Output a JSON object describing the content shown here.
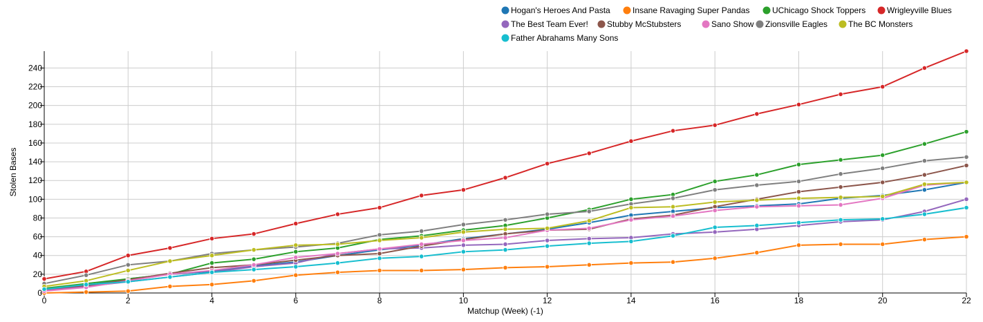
{
  "chart_data": {
    "type": "line",
    "xlabel": "Matchup (Week) (-1)",
    "ylabel": "Stolen Bases",
    "xlim": [
      0,
      22
    ],
    "ylim": [
      0,
      258
    ],
    "xticks": [
      0,
      2,
      4,
      6,
      8,
      10,
      12,
      14,
      16,
      18,
      20,
      22
    ],
    "yticks": [
      0,
      20,
      40,
      60,
      80,
      100,
      120,
      140,
      160,
      180,
      200,
      220,
      240
    ],
    "grid": true,
    "legend_position": "top-right",
    "x": [
      0,
      1,
      2,
      3,
      4,
      5,
      6,
      7,
      8,
      9,
      10,
      11,
      12,
      13,
      14,
      15,
      16,
      17,
      18,
      19,
      20,
      21,
      22
    ],
    "series": [
      {
        "name": "Hogan's Heroes And Pasta",
        "color": "#1f77b4",
        "values": [
          3,
          8,
          15,
          20,
          23,
          29,
          33,
          40,
          46,
          51,
          58,
          63,
          68,
          75,
          83,
          87,
          91,
          93,
          95,
          101,
          104,
          110,
          118
        ]
      },
      {
        "name": "Insane Ravaging Super Pandas",
        "color": "#ff7f0e",
        "values": [
          0,
          1,
          2,
          7,
          9,
          13,
          19,
          22,
          24,
          24,
          25,
          27,
          28,
          30,
          32,
          33,
          37,
          43,
          51,
          52,
          52,
          57,
          60
        ]
      },
      {
        "name": "UChicago Shock Toppers",
        "color": "#2ca02c",
        "values": [
          5,
          10,
          15,
          20,
          32,
          36,
          44,
          48,
          57,
          61,
          67,
          72,
          80,
          89,
          100,
          105,
          119,
          126,
          137,
          142,
          147,
          159,
          172
        ]
      },
      {
        "name": "Wrigleyville Blues",
        "color": "#d62728",
        "values": [
          15,
          23,
          40,
          48,
          58,
          63,
          74,
          84,
          91,
          104,
          110,
          123,
          138,
          149,
          162,
          173,
          179,
          191,
          201,
          212,
          220,
          240,
          258
        ]
      },
      {
        "name": "The Best Team Ever!",
        "color": "#9467bd",
        "values": [
          3,
          7,
          12,
          17,
          22,
          28,
          32,
          42,
          47,
          48,
          51,
          52,
          56,
          58,
          59,
          63,
          65,
          68,
          72,
          76,
          78,
          87,
          100
        ]
      },
      {
        "name": "Stubby McStubsters",
        "color": "#8c564b",
        "values": [
          4,
          8,
          14,
          21,
          27,
          30,
          35,
          40,
          42,
          50,
          57,
          63,
          67,
          68,
          79,
          83,
          92,
          100,
          108,
          113,
          118,
          126,
          136
        ]
      },
      {
        "name": "Sano Show",
        "color": "#e377c2",
        "values": [
          2,
          6,
          13,
          20,
          24,
          30,
          38,
          42,
          47,
          52,
          56,
          59,
          67,
          69,
          78,
          82,
          88,
          92,
          93,
          94,
          101,
          115,
          118
        ]
      },
      {
        "name": "Zionsville Eagles",
        "color": "#7f7f7f",
        "values": [
          10,
          19,
          30,
          34,
          42,
          46,
          49,
          53,
          62,
          66,
          73,
          78,
          84,
          87,
          95,
          101,
          110,
          115,
          119,
          127,
          133,
          141,
          145
        ]
      },
      {
        "name": "The BC Monsters",
        "color": "#bcbd22",
        "values": [
          7,
          13,
          24,
          34,
          40,
          46,
          51,
          52,
          56,
          59,
          65,
          68,
          69,
          77,
          91,
          92,
          97,
          99,
          101,
          102,
          103,
          116,
          118
        ]
      },
      {
        "name": "Father Abrahams Many Sons",
        "color": "#17becf",
        "values": [
          4,
          9,
          12,
          17,
          22,
          25,
          28,
          32,
          37,
          39,
          44,
          46,
          50,
          53,
          55,
          61,
          70,
          72,
          75,
          78,
          79,
          84,
          91
        ]
      }
    ]
  }
}
